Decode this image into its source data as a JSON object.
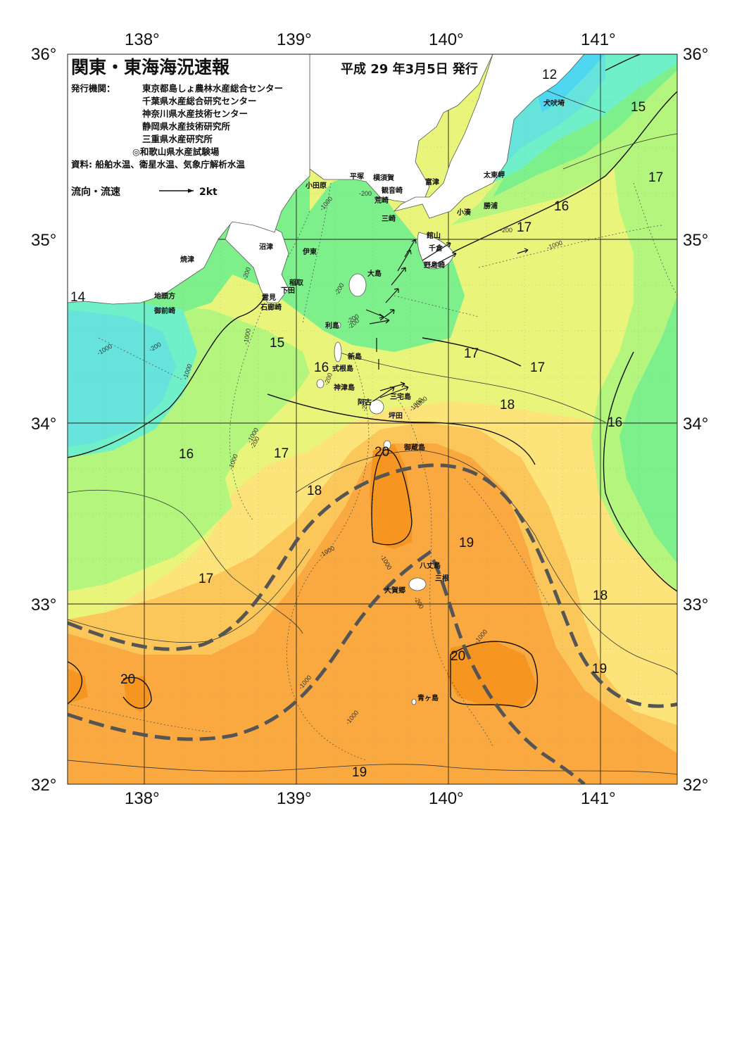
{
  "header": {
    "title": "関東・東海海況速報",
    "issue_date": "平成 29 年3月5日 発行",
    "agency_label": "発行機関：",
    "agencies": [
      "東京都島しょ農林水産総合センター",
      "千葉県水産総合研究センター",
      "神奈川県水産技術センター",
      "静岡県水産技術研究所",
      "三重県水産研究所",
      "◎和歌山県水産試験場"
    ],
    "sources": "資料: 船舶水温、衛星水温、気象庁解析水温",
    "current_legend_label": "流向・流速",
    "current_legend_scale": "2kt"
  },
  "axes": {
    "lon_labels": [
      "138°",
      "139°",
      "140°",
      "141°"
    ],
    "lat_labels": [
      "36°",
      "35°",
      "34°",
      "33°",
      "32°"
    ]
  },
  "places": [
    "小田原",
    "平塚",
    "横須賀",
    "観音崎",
    "富津",
    "荒崎",
    "三崎",
    "太東岬",
    "勝浦",
    "小湊",
    "館山",
    "千倉",
    "野島崎",
    "大島",
    "犬吠埼",
    "沼津",
    "伊東",
    "稲取",
    "下田",
    "雲見",
    "石廊崎",
    "焼津",
    "地頭方",
    "御前崎",
    "利島",
    "新島",
    "式根島",
    "神津島",
    "三宅島",
    "阿古",
    "坪田",
    "御蔵島",
    "八丈島",
    "三根",
    "大賀郷",
    "青ヶ島"
  ],
  "isotherm_labels": [
    "12",
    "15",
    "17",
    "16",
    "17",
    "14",
    "15",
    "16",
    "17",
    "17",
    "18",
    "16",
    "16",
    "17",
    "18",
    "20",
    "19",
    "17",
    "18",
    "20",
    "19",
    "20",
    "19"
  ],
  "depth_labels": [
    "-200",
    "-1000",
    "-200",
    "-200",
    "-1000",
    "-200",
    "-1000",
    "-1000",
    "-200",
    "-1000",
    "-200",
    "-1000",
    "-1000",
    "-1000",
    "-200",
    "-1000",
    "-1000",
    "-1000",
    "-1000",
    "-200",
    "-200",
    "-1000",
    "-200",
    "-200",
    "-1000"
  ],
  "colors": {
    "t12": "#4fd7f2",
    "t13": "#66e4dc",
    "t14": "#6ff0c8",
    "t15": "#7df08c",
    "t16": "#b4f57e",
    "t17": "#e8f47a",
    "t18": "#fce37a",
    "t19": "#fbc65a",
    "t20": "#f9a940",
    "t21": "#f6951f",
    "kuroshio_axis": "#555555",
    "land": "#ffffff"
  }
}
